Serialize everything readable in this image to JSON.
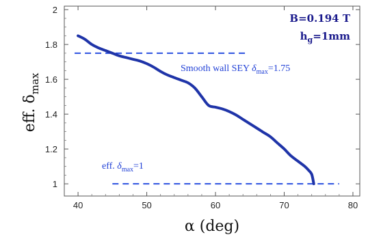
{
  "chart_data": {
    "type": "line",
    "xlabel": "α (deg)",
    "ylabel_main": "eff. δ",
    "ylabel_sub": "max",
    "xlim": [
      38,
      81
    ],
    "ylim": [
      0.93,
      2.02
    ],
    "xticks": [
      "40",
      "50",
      "60",
      "70",
      "80"
    ],
    "yticks": [
      "1",
      "1.2",
      "1.4",
      "1.6",
      "1.8",
      "2"
    ],
    "parameters": {
      "b_field": "B=0.194 T",
      "gap_main": "h",
      "gap_sub": "g",
      "gap_rest": "=1mm"
    },
    "series": [
      {
        "x": [
          40,
          41,
          42,
          43,
          44,
          45,
          46,
          47,
          48,
          49,
          50,
          51,
          52,
          53,
          54,
          55,
          56,
          57,
          58,
          59,
          60,
          61,
          62,
          63,
          64,
          65,
          66,
          67,
          68,
          69,
          70,
          71,
          72,
          73,
          73.5,
          74,
          74.3
        ],
        "y": [
          1.85,
          1.83,
          1.8,
          1.78,
          1.765,
          1.75,
          1.735,
          1.725,
          1.715,
          1.705,
          1.69,
          1.67,
          1.645,
          1.625,
          1.61,
          1.595,
          1.58,
          1.55,
          1.5,
          1.45,
          1.44,
          1.43,
          1.415,
          1.395,
          1.37,
          1.345,
          1.32,
          1.295,
          1.27,
          1.235,
          1.2,
          1.16,
          1.13,
          1.1,
          1.08,
          1.055,
          1.0
        ],
        "color": "#1f34a8"
      }
    ],
    "reference_lines": [
      {
        "y": 1.75,
        "x_from": 39.5,
        "x_to": 64.5,
        "label_prefix": "Smooth wall SEY ",
        "label_delta": "δ",
        "label_sub": "max",
        "label_suffix": "=1.75",
        "color": "#2a4fe0"
      },
      {
        "y": 1.0,
        "x_from": 45,
        "x_to": 78,
        "label_prefix": "eff. ",
        "label_delta": "δ",
        "label_sub": "max",
        "label_suffix": "=1",
        "color": "#2a4fe0"
      }
    ]
  }
}
